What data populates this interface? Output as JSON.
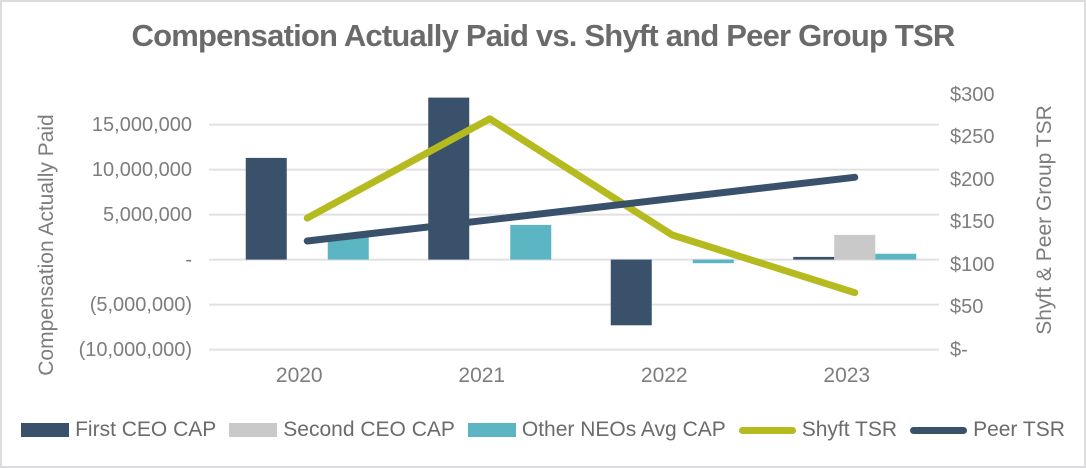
{
  "chart_data": {
    "type": "combo",
    "title": "Compensation Actually Paid vs. Shyft and Peer Group TSR",
    "ylabel_left": "Compensation Actually Paid",
    "ylabel_right": "Shyft & Peer Group TSR",
    "categories": [
      "2020",
      "2021",
      "2022",
      "2023"
    ],
    "y_left_ticks": [
      {
        "label": "15,000,000",
        "value": 15000000
      },
      {
        "label": "10,000,000",
        "value": 10000000
      },
      {
        "label": "5,000,000",
        "value": 5000000
      },
      {
        "label": "-",
        "value": 0
      },
      {
        "label": "(5,000,000)",
        "value": -5000000
      },
      {
        "label": "(10,000,000)",
        "value": -10000000
      }
    ],
    "y_right_ticks": [
      {
        "label": "$300",
        "value": 300
      },
      {
        "label": "$250",
        "value": 250
      },
      {
        "label": "$200",
        "value": 200
      },
      {
        "label": "$150",
        "value": 150
      },
      {
        "label": "$100",
        "value": 100
      },
      {
        "label": "$50",
        "value": 50
      },
      {
        "label": "$-",
        "value": 0
      }
    ],
    "y_left_range": [
      -10000000,
      18300000
    ],
    "y_right_range": [
      0,
      300
    ],
    "grid": true,
    "legend_position": "bottom",
    "series": [
      {
        "name": "First CEO CAP",
        "type": "bar",
        "axis": "left",
        "color": "#3a516c",
        "values": [
          11300000,
          18000000,
          -7300000,
          300000
        ]
      },
      {
        "name": "Second CEO CAP",
        "type": "bar",
        "axis": "left",
        "color": "#c9c9c9",
        "values": [
          0,
          0,
          0,
          2750000
        ]
      },
      {
        "name": "Other NEOs Avg CAP",
        "type": "bar",
        "axis": "left",
        "color": "#5bb5c2",
        "values": [
          2750000,
          3850000,
          -400000,
          650000
        ]
      },
      {
        "name": "Shyft TSR",
        "type": "line",
        "axis": "right",
        "color": "#b5ba1e",
        "values": [
          155,
          272,
          135,
          67
        ]
      },
      {
        "name": "Peer TSR",
        "type": "line",
        "axis": "right",
        "color": "#3a516c",
        "values": [
          128,
          153,
          178,
          203
        ]
      }
    ],
    "colors": {
      "grid": "#e1e1e4",
      "tick_text": "#7d7d7d",
      "title_text": "#6a6a6a",
      "legend_text": "#6b6b6b",
      "background": "#ffffff",
      "border": "#dcdcde"
    }
  }
}
